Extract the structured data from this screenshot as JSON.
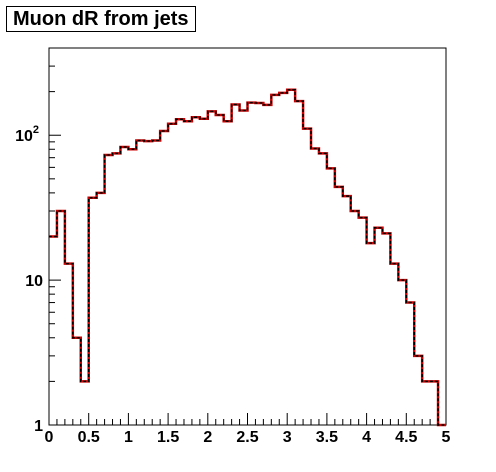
{
  "chart_data": {
    "type": "histogram",
    "title": "Muon dR from jets",
    "xlabel": "",
    "ylabel": "",
    "xlim": [
      0,
      5
    ],
    "ylim": [
      1,
      400
    ],
    "y_scale": "log",
    "grid": false,
    "legend": "none",
    "bin_edges": [
      0.0,
      0.1,
      0.2,
      0.3,
      0.4,
      0.5,
      0.6,
      0.7,
      0.8,
      0.9,
      1.0,
      1.1,
      1.2,
      1.3,
      1.4,
      1.5,
      1.6,
      1.7,
      1.8,
      1.9,
      2.0,
      2.1,
      2.2,
      2.3,
      2.4,
      2.5,
      2.6,
      2.7,
      2.8,
      2.9,
      3.0,
      3.1,
      3.2,
      3.3,
      3.4,
      3.5,
      3.6,
      3.7,
      3.8,
      3.9,
      4.0,
      4.1,
      4.2,
      4.3,
      4.4,
      4.5,
      4.6,
      4.7,
      4.8,
      4.9,
      5.0
    ],
    "series": [
      {
        "color": "#cc0000",
        "style": "solid",
        "values": [
          20,
          30,
          13,
          4,
          2,
          37,
          40,
          73,
          75,
          83,
          80,
          92,
          91,
          92,
          107,
          120,
          129,
          125,
          133,
          130,
          146,
          138,
          125,
          163,
          148,
          168,
          167,
          162,
          190,
          196,
          206,
          172,
          111,
          81,
          75,
          59,
          44,
          38,
          30,
          27,
          18,
          23,
          21,
          13,
          10,
          7,
          3,
          2,
          2,
          1
        ]
      },
      {
        "color": "#000000",
        "style": "dashed",
        "values": [
          20,
          30,
          13,
          4,
          2,
          37,
          40,
          73,
          75,
          83,
          80,
          92,
          91,
          92,
          107,
          120,
          129,
          125,
          133,
          130,
          146,
          138,
          125,
          163,
          148,
          168,
          167,
          162,
          190,
          196,
          206,
          172,
          111,
          81,
          75,
          59,
          44,
          38,
          30,
          27,
          18,
          23,
          21,
          13,
          10,
          7,
          3,
          2,
          2,
          1
        ]
      }
    ],
    "x_ticks": [
      "0",
      "0.5",
      "1",
      "1.5",
      "2",
      "2.5",
      "3",
      "3.5",
      "4",
      "4.5",
      "5"
    ],
    "y_ticks": [
      {
        "value": 1,
        "label": "1"
      },
      {
        "value": 10,
        "label": "10"
      },
      {
        "value": 100,
        "label": "10",
        "exponent": "2"
      }
    ]
  }
}
